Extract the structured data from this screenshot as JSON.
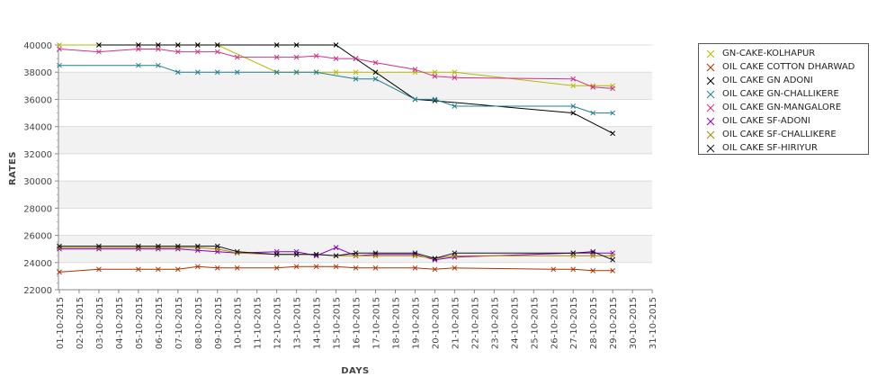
{
  "chart_data": {
    "type": "line",
    "xlabel": "DAYS",
    "ylabel": "RATES",
    "ylim": [
      22000,
      40000
    ],
    "y_ticks": [
      22000,
      24000,
      26000,
      28000,
      30000,
      32000,
      34000,
      36000,
      38000,
      40000
    ],
    "grid": "alternating horizontal bands",
    "legend_position": "right",
    "x_ticks": [
      "01-10-2015",
      "02-10-2015",
      "03-10-2015",
      "04-10-2015",
      "05-10-2015",
      "06-10-2015",
      "07-10-2015",
      "08-10-2015",
      "09-10-2015",
      "10-10-2015",
      "11-10-2015",
      "12-10-2015",
      "13-10-2015",
      "14-10-2015",
      "15-10-2015",
      "16-10-2015",
      "17-10-2015",
      "18-10-2015",
      "19-10-2015",
      "20-10-2015",
      "21-10-2015",
      "22-10-2015",
      "23-10-2015",
      "24-10-2015",
      "25-10-2015",
      "26-10-2015",
      "27-10-2015",
      "28-10-2015",
      "29-10-2015",
      "30-10-2015",
      "31-10-2015"
    ],
    "series": [
      {
        "name": "GN-CAKE-KOLHAPUR",
        "color": "#b8b800",
        "points": [
          [
            1,
            40000
          ],
          [
            3,
            40000
          ],
          [
            5,
            40000
          ],
          [
            6,
            40000
          ],
          [
            7,
            40000
          ],
          [
            8,
            40000
          ],
          [
            9,
            40000
          ],
          [
            12,
            38000
          ],
          [
            13,
            38000
          ],
          [
            14,
            38000
          ],
          [
            15,
            38000
          ],
          [
            16,
            38000
          ],
          [
            17,
            38000
          ],
          [
            19,
            38000
          ],
          [
            20,
            38000
          ],
          [
            21,
            38000
          ],
          [
            27,
            37000
          ],
          [
            28,
            37000
          ],
          [
            29,
            37000
          ]
        ]
      },
      {
        "name": "OIL CAKE COTTON DHARWAD",
        "color": "#aa3300",
        "points": [
          [
            1,
            23300
          ],
          [
            3,
            23500
          ],
          [
            5,
            23500
          ],
          [
            6,
            23500
          ],
          [
            7,
            23500
          ],
          [
            8,
            23700
          ],
          [
            9,
            23600
          ],
          [
            10,
            23600
          ],
          [
            12,
            23600
          ],
          [
            13,
            23700
          ],
          [
            14,
            23700
          ],
          [
            15,
            23700
          ],
          [
            16,
            23600
          ],
          [
            17,
            23600
          ],
          [
            19,
            23600
          ],
          [
            20,
            23500
          ],
          [
            21,
            23600
          ],
          [
            26,
            23500
          ],
          [
            27,
            23500
          ],
          [
            28,
            23400
          ],
          [
            29,
            23400
          ]
        ]
      },
      {
        "name": "OIL CAKE GN ADONI",
        "color": "#000000",
        "points": [
          [
            3,
            40000
          ],
          [
            5,
            40000
          ],
          [
            6,
            40000
          ],
          [
            7,
            40000
          ],
          [
            8,
            40000
          ],
          [
            9,
            40000
          ],
          [
            12,
            40000
          ],
          [
            13,
            40000
          ],
          [
            15,
            40000
          ],
          [
            16,
            39000
          ],
          [
            17,
            38000
          ],
          [
            19,
            36000
          ],
          [
            20,
            35900
          ],
          [
            27,
            35000
          ],
          [
            29,
            33500
          ]
        ]
      },
      {
        "name": "OIL CAKE GN-CHALLIKERE",
        "color": "#1f7f8f",
        "points": [
          [
            1,
            38500
          ],
          [
            5,
            38500
          ],
          [
            6,
            38500
          ],
          [
            7,
            38000
          ],
          [
            8,
            38000
          ],
          [
            9,
            38000
          ],
          [
            10,
            38000
          ],
          [
            12,
            38000
          ],
          [
            13,
            38000
          ],
          [
            14,
            38000
          ],
          [
            16,
            37500
          ],
          [
            17,
            37500
          ],
          [
            19,
            36000
          ],
          [
            20,
            36000
          ],
          [
            21,
            35500
          ],
          [
            27,
            35500
          ],
          [
            28,
            35000
          ],
          [
            29,
            35000
          ]
        ]
      },
      {
        "name": "OIL CAKE GN-MANGALORE",
        "color": "#cc3388",
        "points": [
          [
            1,
            39700
          ],
          [
            3,
            39500
          ],
          [
            5,
            39700
          ],
          [
            6,
            39700
          ],
          [
            7,
            39500
          ],
          [
            8,
            39500
          ],
          [
            9,
            39500
          ],
          [
            10,
            39100
          ],
          [
            12,
            39100
          ],
          [
            13,
            39100
          ],
          [
            14,
            39200
          ],
          [
            15,
            39000
          ],
          [
            16,
            39000
          ],
          [
            17,
            38700
          ],
          [
            19,
            38200
          ],
          [
            20,
            37700
          ],
          [
            21,
            37600
          ],
          [
            27,
            37500
          ],
          [
            28,
            36900
          ],
          [
            29,
            36800
          ]
        ]
      },
      {
        "name": "OIL CAKE SF-ADONI",
        "color": "#8800bb",
        "points": [
          [
            1,
            25000
          ],
          [
            3,
            25000
          ],
          [
            5,
            25000
          ],
          [
            6,
            25000
          ],
          [
            7,
            25000
          ],
          [
            8,
            24900
          ],
          [
            9,
            24800
          ],
          [
            10,
            24700
          ],
          [
            12,
            24800
          ],
          [
            13,
            24800
          ],
          [
            14,
            24500
          ],
          [
            15,
            25100
          ],
          [
            16,
            24500
          ],
          [
            17,
            24600
          ],
          [
            19,
            24600
          ],
          [
            20,
            24200
          ],
          [
            21,
            24400
          ],
          [
            27,
            24700
          ],
          [
            28,
            24700
          ],
          [
            29,
            24700
          ]
        ]
      },
      {
        "name": "OIL CAKE SF-CHALLIKERE",
        "color": "#aa8800",
        "points": [
          [
            1,
            25100
          ],
          [
            3,
            25100
          ],
          [
            5,
            25100
          ],
          [
            6,
            25100
          ],
          [
            7,
            25100
          ],
          [
            8,
            25100
          ],
          [
            9,
            25000
          ],
          [
            10,
            24700
          ],
          [
            12,
            24600
          ],
          [
            13,
            24600
          ],
          [
            14,
            24600
          ],
          [
            15,
            24500
          ],
          [
            16,
            24500
          ],
          [
            17,
            24500
          ],
          [
            19,
            24500
          ],
          [
            20,
            24300
          ],
          [
            21,
            24500
          ],
          [
            27,
            24500
          ],
          [
            28,
            24500
          ],
          [
            29,
            24500
          ]
        ]
      },
      {
        "name": "OIL CAKE SF-HIRIYUR",
        "color": "#111122",
        "points": [
          [
            1,
            25200
          ],
          [
            3,
            25200
          ],
          [
            5,
            25200
          ],
          [
            6,
            25200
          ],
          [
            7,
            25200
          ],
          [
            8,
            25200
          ],
          [
            9,
            25200
          ],
          [
            10,
            24800
          ],
          [
            12,
            24600
          ],
          [
            13,
            24600
          ],
          [
            14,
            24600
          ],
          [
            15,
            24500
          ],
          [
            16,
            24700
          ],
          [
            17,
            24700
          ],
          [
            19,
            24700
          ],
          [
            20,
            24300
          ],
          [
            21,
            24700
          ],
          [
            27,
            24700
          ],
          [
            28,
            24800
          ],
          [
            29,
            24200
          ]
        ]
      }
    ]
  }
}
